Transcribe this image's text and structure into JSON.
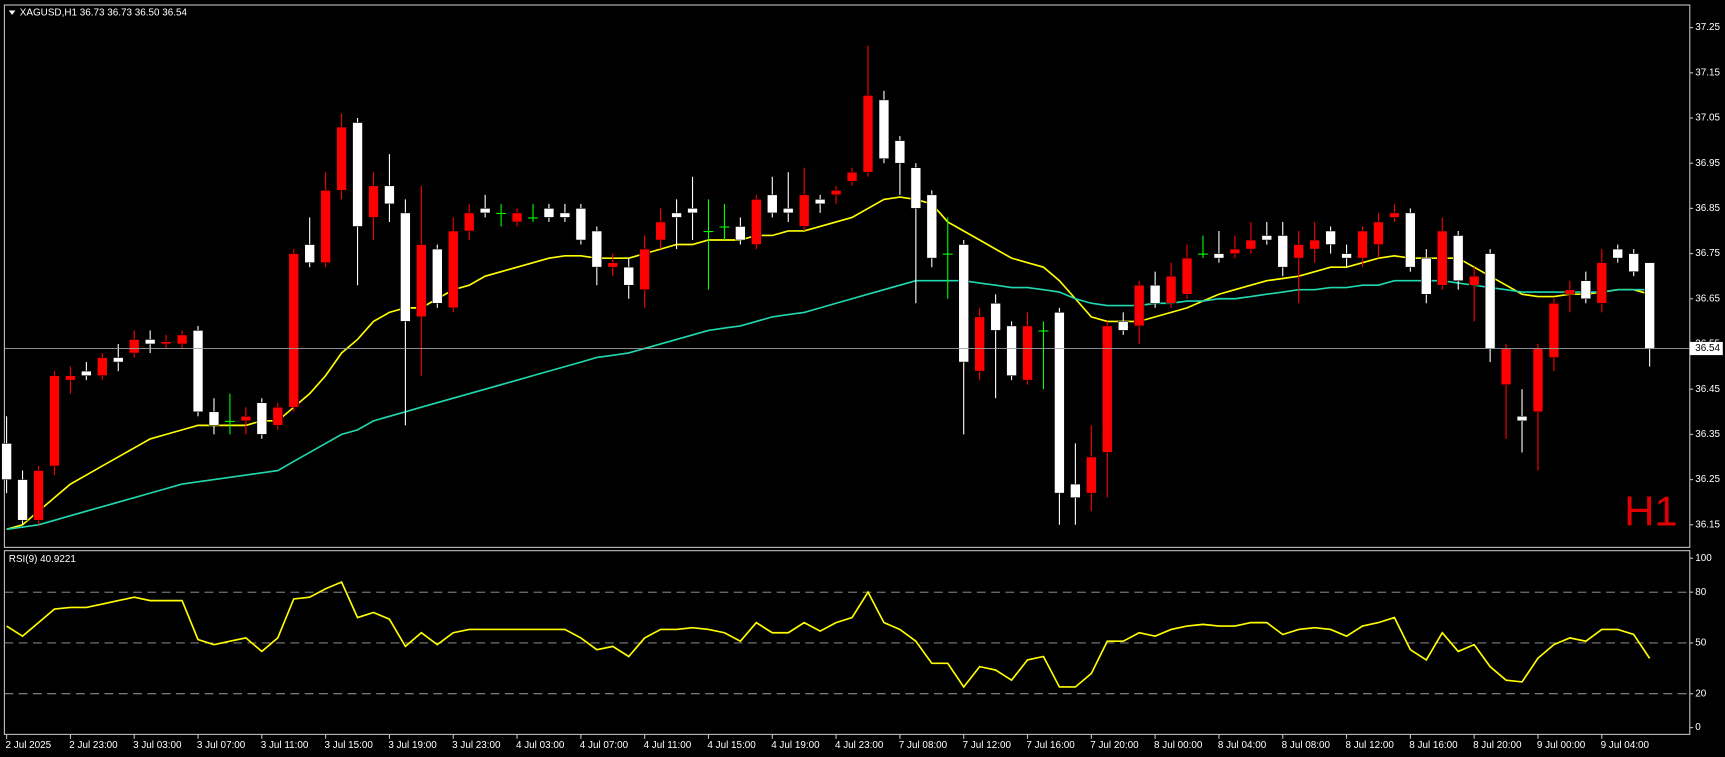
{
  "chart_data": [
    {
      "type": "candlestick",
      "title": "XAGUSD,H1  36.73 36.73 36.50 36.54",
      "annotation": "H1",
      "categories": [
        "2 Jul 2025",
        null,
        null,
        null,
        "2 Jul 23:00",
        null,
        null,
        null,
        "3 Jul 03:00",
        null,
        null,
        null,
        "3 Jul 07:00",
        null,
        null,
        null,
        "3 Jul 11:00",
        null,
        null,
        null,
        "3 Jul 15:00",
        null,
        null,
        null,
        "3 Jul 19:00",
        null,
        null,
        null,
        "3 Jul 23:00",
        null,
        null,
        null,
        "4 Jul 03:00",
        null,
        null,
        null,
        "4 Jul 07:00",
        null,
        null,
        null,
        "4 Jul 11:00",
        null,
        null,
        null,
        "4 Jul 15:00",
        null,
        null,
        null,
        "4 Jul 19:00",
        null,
        null,
        null,
        "4 Jul 23:00",
        null,
        null,
        null,
        "7 Jul 08:00",
        null,
        null,
        null,
        "7 Jul 12:00",
        null,
        null,
        null,
        "7 Jul 16:00",
        null,
        null,
        null,
        "7 Jul 20:00",
        null,
        null,
        null,
        "8 Jul 00:00",
        null,
        null,
        null,
        "8 Jul 04:00",
        null,
        null,
        null,
        "8 Jul 08:00",
        null,
        null,
        null,
        "8 Jul 12:00",
        null,
        null,
        null,
        "8 Jul 16:00",
        null,
        null,
        null,
        "8 Jul 20:00",
        null,
        null,
        null,
        "9 Jul 00:00",
        null,
        null,
        null,
        "9 Jul 04:00",
        null,
        null,
        null
      ],
      "open": [
        36.33,
        36.25,
        36.16,
        36.28,
        36.47,
        36.49,
        36.48,
        36.52,
        36.53,
        36.56,
        36.55,
        36.55,
        36.58,
        36.4,
        36.38,
        36.38,
        36.42,
        36.37,
        36.41,
        36.77,
        36.73,
        36.89,
        37.04,
        36.83,
        36.9,
        36.84,
        36.61,
        36.76,
        36.63,
        36.8,
        36.85,
        36.84,
        36.82,
        36.83,
        36.85,
        36.84,
        36.85,
        36.8,
        36.72,
        36.72,
        36.67,
        36.78,
        36.84,
        36.85,
        36.8,
        36.81,
        36.81,
        36.77,
        36.88,
        36.85,
        36.81,
        36.87,
        36.88,
        36.91,
        36.93,
        37.09,
        37.0,
        36.94,
        36.88,
        36.75,
        36.77,
        36.49,
        36.64,
        36.59,
        36.47,
        36.58,
        36.62,
        36.24,
        36.22,
        36.31,
        36.6,
        36.59,
        36.68,
        36.64,
        36.66,
        36.75,
        36.75,
        36.75,
        36.76,
        36.79,
        36.79,
        36.74,
        36.76,
        36.8,
        36.75,
        36.74,
        36.77,
        36.83,
        36.84,
        36.74,
        36.68,
        36.79,
        36.68,
        36.75,
        36.46,
        36.39,
        36.4,
        36.52,
        36.66,
        36.69,
        36.64,
        36.76,
        36.75,
        36.73
      ],
      "high": [
        36.39,
        36.27,
        36.28,
        36.49,
        36.5,
        36.51,
        36.53,
        36.55,
        36.58,
        36.58,
        36.57,
        36.58,
        36.59,
        36.43,
        36.44,
        36.41,
        36.43,
        36.42,
        36.76,
        36.83,
        36.93,
        37.06,
        37.05,
        36.93,
        36.97,
        36.87,
        36.9,
        36.77,
        36.83,
        36.86,
        36.88,
        36.86,
        36.85,
        36.86,
        36.86,
        36.86,
        36.86,
        36.81,
        36.75,
        36.74,
        36.79,
        36.85,
        36.87,
        36.92,
        36.87,
        36.86,
        36.83,
        36.88,
        36.92,
        36.93,
        36.94,
        36.88,
        36.9,
        36.94,
        37.21,
        37.11,
        37.01,
        36.95,
        36.89,
        36.83,
        36.78,
        36.63,
        36.66,
        36.6,
        36.62,
        36.6,
        36.63,
        36.33,
        36.37,
        36.6,
        36.62,
        36.69,
        36.71,
        36.73,
        36.77,
        36.79,
        36.8,
        36.79,
        36.82,
        36.82,
        36.82,
        36.8,
        36.82,
        36.81,
        36.77,
        36.81,
        36.84,
        36.86,
        36.85,
        36.76,
        36.83,
        36.8,
        36.72,
        36.76,
        36.55,
        36.45,
        36.55,
        36.65,
        36.69,
        36.71,
        36.76,
        36.77,
        36.76,
        36.73
      ],
      "low": [
        36.22,
        36.15,
        36.15,
        36.26,
        36.44,
        36.47,
        36.47,
        36.49,
        36.52,
        36.53,
        36.54,
        36.54,
        36.39,
        36.35,
        36.35,
        36.35,
        36.34,
        36.36,
        36.4,
        36.72,
        36.72,
        36.87,
        36.68,
        36.78,
        36.82,
        36.37,
        36.48,
        36.63,
        36.62,
        36.78,
        36.83,
        36.81,
        36.81,
        36.82,
        36.82,
        36.82,
        36.77,
        36.68,
        36.7,
        36.65,
        36.63,
        36.76,
        36.76,
        36.78,
        36.67,
        36.78,
        36.77,
        36.76,
        36.83,
        36.82,
        36.8,
        36.84,
        36.86,
        36.9,
        36.92,
        36.95,
        36.88,
        36.64,
        36.72,
        36.65,
        36.35,
        36.47,
        36.43,
        36.47,
        36.46,
        36.45,
        36.15,
        36.15,
        36.18,
        36.21,
        36.57,
        36.55,
        36.63,
        36.63,
        36.65,
        36.74,
        36.73,
        36.74,
        36.75,
        36.77,
        36.7,
        36.64,
        36.73,
        36.75,
        36.72,
        36.72,
        36.74,
        36.82,
        36.71,
        36.64,
        36.67,
        36.67,
        36.6,
        36.51,
        36.34,
        36.31,
        36.27,
        36.49,
        36.62,
        36.64,
        36.62,
        36.73,
        36.7,
        36.5
      ],
      "close": [
        36.25,
        36.16,
        36.27,
        36.48,
        36.48,
        36.48,
        36.52,
        36.51,
        36.56,
        36.55,
        36.555,
        36.57,
        36.4,
        36.37,
        36.38,
        36.39,
        36.35,
        36.41,
        36.75,
        36.73,
        36.89,
        37.03,
        36.81,
        36.9,
        36.86,
        36.6,
        36.77,
        36.64,
        36.8,
        36.84,
        36.84,
        36.84,
        36.84,
        36.83,
        36.83,
        36.83,
        36.78,
        36.72,
        36.73,
        36.68,
        36.76,
        36.82,
        36.83,
        36.84,
        36.8,
        36.81,
        36.78,
        36.87,
        36.84,
        36.84,
        36.88,
        36.86,
        36.89,
        36.93,
        37.1,
        36.96,
        36.95,
        36.85,
        36.74,
        36.75,
        36.51,
        36.61,
        36.58,
        36.48,
        36.59,
        36.58,
        36.22,
        36.21,
        36.3,
        36.59,
        36.58,
        36.68,
        36.64,
        36.7,
        36.74,
        36.75,
        36.74,
        36.76,
        36.78,
        36.78,
        36.72,
        36.77,
        36.78,
        36.77,
        36.74,
        36.8,
        36.82,
        36.84,
        36.72,
        36.66,
        36.8,
        36.69,
        36.7,
        36.54,
        36.54,
        36.38,
        36.54,
        36.64,
        36.67,
        36.65,
        36.73,
        36.74,
        36.71,
        36.54
      ],
      "up_color": "#ff0000",
      "down_color": "#ffffff",
      "doji_color": "#00ff00",
      "series": [
        {
          "color": "#ffff00",
          "values": [
            36.14,
            36.15,
            36.18,
            36.21,
            36.24,
            36.26,
            36.28,
            36.3,
            36.32,
            36.34,
            36.35,
            36.36,
            36.37,
            36.37,
            36.37,
            36.37,
            36.38,
            36.38,
            36.41,
            36.44,
            36.48,
            36.53,
            36.56,
            36.6,
            36.62,
            36.63,
            36.63,
            36.65,
            36.67,
            36.68,
            36.7,
            36.71,
            36.72,
            36.73,
            36.74,
            36.745,
            36.745,
            36.74,
            36.74,
            36.74,
            36.75,
            36.76,
            36.77,
            36.77,
            36.78,
            36.78,
            36.78,
            36.79,
            36.79,
            36.8,
            36.8,
            36.81,
            36.82,
            36.83,
            36.85,
            36.87,
            36.875,
            36.87,
            36.86,
            36.82,
            36.8,
            36.78,
            36.76,
            36.74,
            36.73,
            36.72,
            36.69,
            36.65,
            36.61,
            36.6,
            36.6,
            36.6,
            36.61,
            36.62,
            36.63,
            36.645,
            36.66,
            36.67,
            36.68,
            36.69,
            36.695,
            36.7,
            36.71,
            36.72,
            36.72,
            36.73,
            36.74,
            36.745,
            36.74,
            36.74,
            36.74,
            36.74,
            36.72,
            36.7,
            36.68,
            36.66,
            36.655,
            36.655,
            36.66,
            36.66,
            36.665,
            36.67,
            36.67,
            36.66
          ]
        },
        {
          "color": "#20d8b0",
          "values": [
            36.14,
            36.145,
            36.15,
            36.16,
            36.17,
            36.18,
            36.19,
            36.2,
            36.21,
            36.22,
            36.23,
            36.24,
            36.245,
            36.25,
            36.255,
            36.26,
            36.265,
            36.27,
            36.29,
            36.31,
            36.33,
            36.35,
            36.36,
            36.38,
            36.39,
            36.4,
            36.41,
            36.42,
            36.43,
            36.44,
            36.45,
            36.46,
            36.47,
            36.48,
            36.49,
            36.5,
            36.51,
            36.52,
            36.525,
            36.53,
            36.54,
            36.55,
            36.56,
            36.57,
            36.58,
            36.585,
            36.59,
            36.6,
            36.61,
            36.615,
            36.62,
            36.63,
            36.64,
            36.65,
            36.66,
            36.67,
            36.68,
            36.69,
            36.69,
            36.69,
            36.69,
            36.685,
            36.68,
            36.675,
            36.675,
            36.67,
            36.665,
            36.65,
            36.64,
            36.635,
            36.635,
            36.635,
            36.64,
            36.64,
            36.645,
            36.645,
            36.65,
            36.65,
            36.655,
            36.66,
            36.665,
            36.67,
            36.67,
            36.675,
            36.675,
            36.68,
            36.68,
            36.69,
            36.69,
            36.69,
            36.69,
            36.685,
            36.68,
            36.675,
            36.67,
            36.665,
            36.665,
            36.665,
            36.665,
            36.665,
            36.665,
            36.67,
            36.67,
            36.67
          ]
        }
      ],
      "ylim": [
        36.1,
        37.3
      ],
      "yticks": [
        36.15,
        36.25,
        36.35,
        36.45,
        36.55,
        36.65,
        36.75,
        36.85,
        36.95,
        37.05,
        37.15,
        37.25
      ]
    },
    {
      "type": "line",
      "title": "RSI(9) 40.9221",
      "color": "#ffff00",
      "values": [
        60,
        54,
        62,
        70,
        71,
        71,
        73,
        75,
        77,
        75,
        75,
        75,
        52,
        49,
        51,
        53,
        45,
        53,
        76,
        77,
        82,
        86,
        65,
        68,
        64,
        48,
        56,
        49,
        56,
        58,
        58,
        58,
        58,
        58,
        58,
        58,
        53,
        46,
        48,
        42,
        53,
        58,
        58,
        59,
        58,
        56,
        51,
        62,
        56,
        56,
        62,
        57,
        62,
        65,
        80,
        62,
        58,
        51,
        38,
        38,
        24,
        36,
        34,
        28,
        40,
        42,
        24,
        24,
        32,
        51,
        51,
        56,
        54,
        58,
        60,
        61,
        60,
        60,
        62,
        62,
        55,
        58,
        59,
        58,
        54,
        60,
        62,
        65,
        46,
        40,
        56,
        45,
        49,
        36,
        28,
        27,
        41,
        49,
        53,
        51,
        58,
        58,
        55,
        40.9221
      ],
      "ylim": [
        -4,
        104.5
      ],
      "yticks": [
        0,
        20,
        50,
        80,
        100
      ],
      "levels": [
        20,
        50,
        80
      ]
    }
  ]
}
